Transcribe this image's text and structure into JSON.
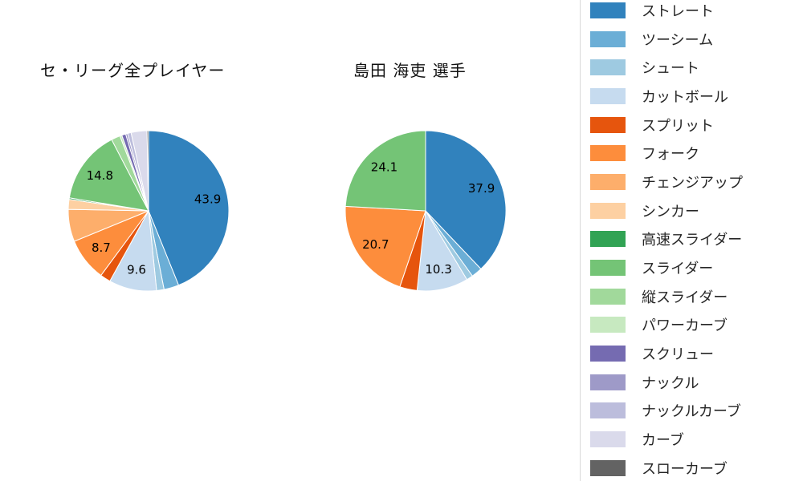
{
  "page": {
    "background": "#ffffff"
  },
  "legend": {
    "items": [
      {
        "label": "ストレート",
        "color": "#3182bd"
      },
      {
        "label": "ツーシーム",
        "color": "#6baed6"
      },
      {
        "label": "シュート",
        "color": "#9ecae1"
      },
      {
        "label": "カットボール",
        "color": "#c6dbef"
      },
      {
        "label": "スプリット",
        "color": "#e6550d"
      },
      {
        "label": "フォーク",
        "color": "#fd8d3c"
      },
      {
        "label": "チェンジアップ",
        "color": "#fdae6b"
      },
      {
        "label": "シンカー",
        "color": "#fdd0a2"
      },
      {
        "label": "高速スライダー",
        "color": "#31a354"
      },
      {
        "label": "スライダー",
        "color": "#74c476"
      },
      {
        "label": "縦スライダー",
        "color": "#a1d99b"
      },
      {
        "label": "パワーカーブ",
        "color": "#c7e9c0"
      },
      {
        "label": "スクリュー",
        "color": "#756bb1"
      },
      {
        "label": "ナックル",
        "color": "#9e9ac8"
      },
      {
        "label": "ナックルカーブ",
        "color": "#bcbddc"
      },
      {
        "label": "カーブ",
        "color": "#dadaeb"
      },
      {
        "label": "スローカーブ",
        "color": "#636363"
      }
    ]
  },
  "chart_data": [
    {
      "type": "pie",
      "title": "セ・リーグ全プレイヤー",
      "value_unit": "percent",
      "start_angle": "12-oclock",
      "direction": "clockwise",
      "legend_position": "right",
      "slices": [
        {
          "name": "ストレート",
          "value": 43.9,
          "label": "43.9"
        },
        {
          "name": "ツーシーム",
          "value": 3.0
        },
        {
          "name": "シュート",
          "value": 1.5
        },
        {
          "name": "カットボール",
          "value": 9.6,
          "label": "9.6"
        },
        {
          "name": "スプリット",
          "value": 2.1
        },
        {
          "name": "フォーク",
          "value": 8.7,
          "label": "8.7"
        },
        {
          "name": "チェンジアップ",
          "value": 6.5
        },
        {
          "name": "シンカー",
          "value": 2.0
        },
        {
          "name": "高速スライダー",
          "value": 0.3
        },
        {
          "name": "スライダー",
          "value": 14.8,
          "label": "14.8"
        },
        {
          "name": "縦スライダー",
          "value": 1.8
        },
        {
          "name": "パワーカーブ",
          "value": 0.4
        },
        {
          "name": "スクリュー",
          "value": 0.8
        },
        {
          "name": "ナックル",
          "value": 0.4
        },
        {
          "name": "ナックルカーブ",
          "value": 0.7
        },
        {
          "name": "カーブ",
          "value": 3.2
        },
        {
          "name": "スローカーブ",
          "value": 0.3
        }
      ]
    },
    {
      "type": "pie",
      "title": "島田 海吏 選手",
      "value_unit": "percent",
      "start_angle": "12-oclock",
      "direction": "clockwise",
      "legend_position": "right",
      "slices": [
        {
          "name": "ストレート",
          "value": 37.9,
          "label": "37.9"
        },
        {
          "name": "ツーシーム",
          "value": 2.2
        },
        {
          "name": "シュート",
          "value": 1.3
        },
        {
          "name": "カットボール",
          "value": 10.3,
          "label": "10.3"
        },
        {
          "name": "スプリット",
          "value": 3.5
        },
        {
          "name": "フォーク",
          "value": 20.7,
          "label": "20.7"
        },
        {
          "name": "スライダー",
          "value": 24.1,
          "label": "24.1"
        }
      ]
    }
  ]
}
